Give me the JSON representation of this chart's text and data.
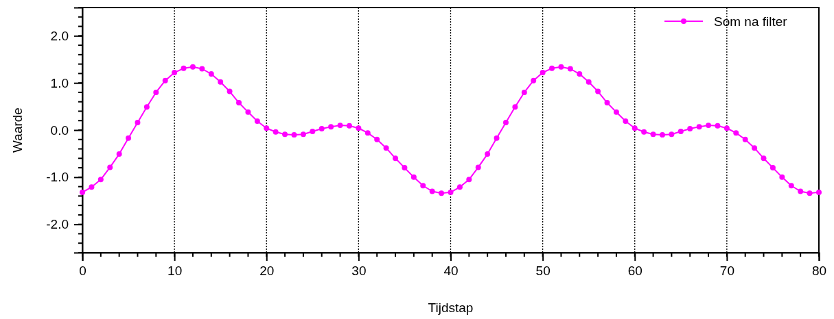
{
  "chart_data": {
    "type": "line",
    "xlabel": "Tijdstap",
    "ylabel": "Waarde",
    "x": [
      0,
      1,
      2,
      3,
      4,
      5,
      6,
      7,
      8,
      9,
      10,
      11,
      12,
      13,
      14,
      15,
      16,
      17,
      18,
      19,
      20,
      21,
      22,
      23,
      24,
      25,
      26,
      27,
      28,
      29,
      30,
      31,
      32,
      33,
      34,
      35,
      36,
      37,
      38,
      39,
      40,
      41,
      42,
      43,
      44,
      45,
      46,
      47,
      48,
      49,
      50,
      51,
      52,
      53,
      54,
      55,
      56,
      57,
      58,
      59,
      60,
      61,
      62,
      63,
      64,
      65,
      66,
      67,
      68,
      69,
      70,
      71,
      72,
      73,
      74,
      75,
      76,
      77,
      78,
      79,
      80
    ],
    "series": [
      {
        "name": "Som na filter",
        "color": "#ff00ff",
        "values": [
          -1.32,
          -1.21,
          -1.05,
          -0.79,
          -0.51,
          -0.17,
          0.16,
          0.49,
          0.8,
          1.05,
          1.22,
          1.31,
          1.34,
          1.3,
          1.19,
          1.02,
          0.82,
          0.58,
          0.38,
          0.19,
          0.04,
          -0.04,
          -0.09,
          -0.1,
          -0.09,
          -0.03,
          0.03,
          0.07,
          0.1,
          0.09,
          0.04,
          -0.06,
          -0.2,
          -0.38,
          -0.6,
          -0.8,
          -1.0,
          -1.18,
          -1.3,
          -1.34,
          -1.32,
          -1.21,
          -1.05,
          -0.79,
          -0.51,
          -0.17,
          0.16,
          0.49,
          0.8,
          1.05,
          1.22,
          1.31,
          1.34,
          1.3,
          1.19,
          1.02,
          0.82,
          0.58,
          0.38,
          0.19,
          0.04,
          -0.04,
          -0.09,
          -0.1,
          -0.09,
          -0.03,
          0.03,
          0.07,
          0.1,
          0.09,
          0.04,
          -0.06,
          -0.2,
          -0.38,
          -0.6,
          -0.8,
          -1.0,
          -1.18,
          -1.3,
          -1.34,
          -1.32
        ]
      }
    ],
    "xlim": [
      0,
      80
    ],
    "xticks": [
      0,
      10,
      20,
      30,
      40,
      50,
      60,
      70,
      80
    ],
    "ylim": [
      -2.6,
      2.6
    ],
    "yticks": [
      {
        "value": -2,
        "label": "-2.0"
      },
      {
        "value": -1,
        "label": "-1.0"
      },
      {
        "value": 0,
        "label": "0.0"
      },
      {
        "value": 1,
        "label": "1.0"
      },
      {
        "value": 2,
        "label": "2.0"
      }
    ],
    "grid": "x",
    "legend": "top right",
    "marker": "circle",
    "line_style": "solid"
  }
}
